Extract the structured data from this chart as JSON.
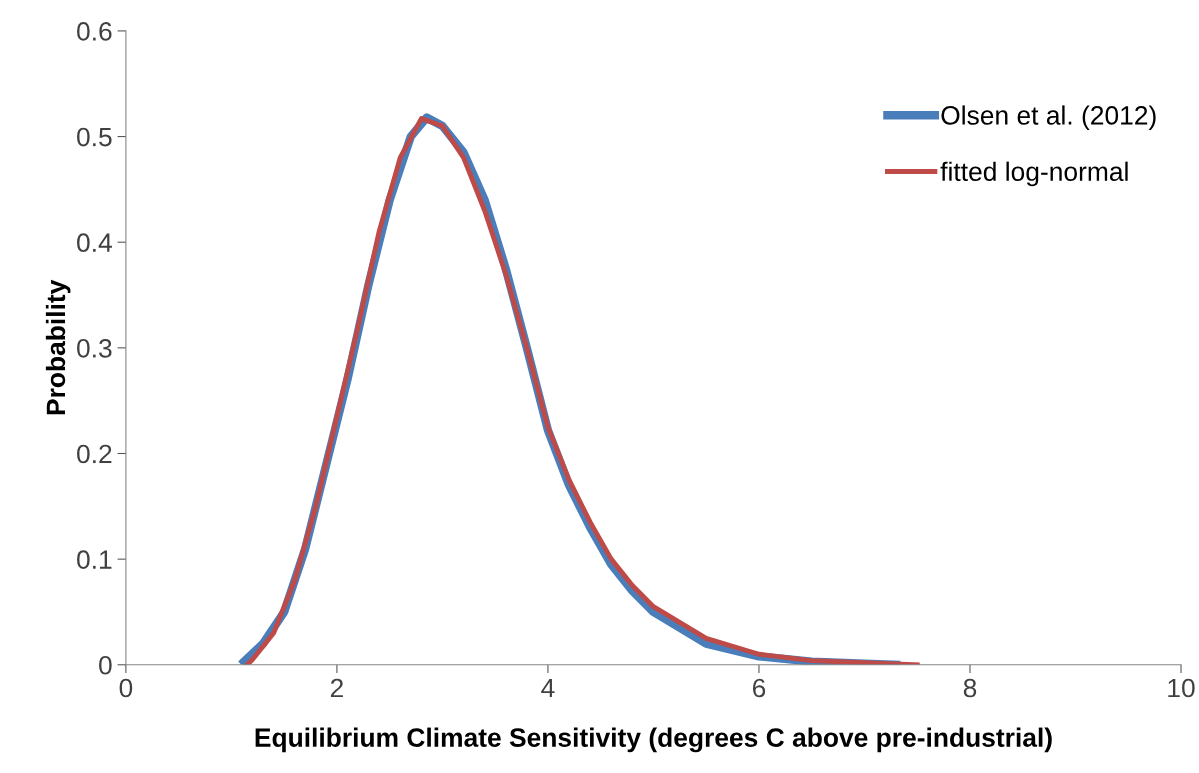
{
  "chart_data": {
    "type": "line",
    "xlabel": "Equilibrium Climate Sensitivity (degrees C above pre-industrial)",
    "ylabel": "Probability",
    "xlim": [
      0,
      10
    ],
    "xticks": [
      0,
      2,
      4,
      6,
      8,
      10
    ],
    "ylim": [
      0,
      0.6
    ],
    "yticks": [
      0,
      0.1,
      0.2,
      0.3,
      0.4,
      0.5,
      0.6
    ],
    "grid": false,
    "legend": "top right",
    "series": [
      {
        "name": "Olsen et al. (2012)",
        "color": "#4a7ebb",
        "x": [
          1.12,
          1.3,
          1.5,
          1.7,
          1.9,
          2.1,
          2.3,
          2.5,
          2.7,
          2.85,
          3.0,
          3.2,
          3.4,
          3.6,
          3.8,
          4.0,
          4.2,
          4.4,
          4.6,
          4.8,
          5.0,
          5.5,
          6.0,
          6.5,
          7.0,
          7.3
        ],
        "values": [
          0.003,
          0.02,
          0.05,
          0.11,
          0.19,
          0.27,
          0.36,
          0.44,
          0.5,
          0.518,
          0.51,
          0.485,
          0.44,
          0.375,
          0.3,
          0.222,
          0.17,
          0.13,
          0.095,
          0.07,
          0.05,
          0.02,
          0.008,
          0.003,
          0.001,
          0
        ]
      },
      {
        "name": "fitted log-normal",
        "color": "#be4b48",
        "x": [
          1.15,
          1.2,
          1.4,
          1.6,
          1.8,
          2.0,
          2.2,
          2.4,
          2.6,
          2.8,
          3.0,
          3.2,
          3.4,
          3.6,
          3.8,
          4.0,
          4.2,
          4.4,
          4.6,
          4.8,
          5.0,
          5.5,
          6.0,
          6.5,
          7.0,
          7.5
        ],
        "values": [
          0,
          0.005,
          0.03,
          0.08,
          0.15,
          0.235,
          0.32,
          0.41,
          0.48,
          0.517,
          0.51,
          0.48,
          0.43,
          0.37,
          0.3,
          0.225,
          0.175,
          0.135,
          0.1,
          0.075,
          0.055,
          0.025,
          0.01,
          0.004,
          0.002,
          0
        ]
      }
    ]
  }
}
